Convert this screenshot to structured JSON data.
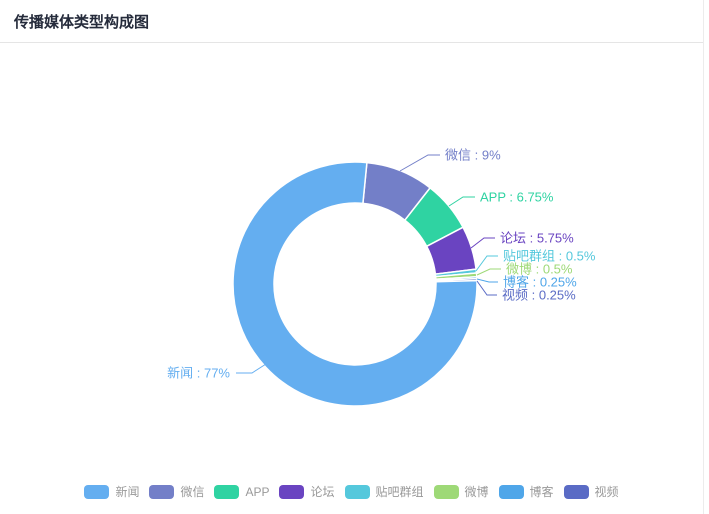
{
  "header": {
    "title": "传播媒体类型构成图"
  },
  "style": {
    "title_color": "#252B3B",
    "legend_text_color": "#999999",
    "panel_border_color": "#ECECEC",
    "background": "#FFFFFF"
  },
  "chart_data": {
    "type": "pie",
    "style": "donut",
    "title": "传播媒体类型构成图",
    "legend_position": "bottom",
    "categories": [
      "新闻",
      "微信",
      "APP",
      "论坛",
      "贴吧群组",
      "微博",
      "博客",
      "视频"
    ],
    "values": [
      77,
      9,
      6.75,
      5.75,
      0.5,
      0.5,
      0.25,
      0.25
    ],
    "unit": "%",
    "items": [
      {
        "name": "新闻",
        "value": 77,
        "percent_label": "新闻 : 77%",
        "color": "#64AEF0"
      },
      {
        "name": "微信",
        "value": 9,
        "percent_label": "微信 : 9%",
        "color": "#737FC8"
      },
      {
        "name": "APP",
        "value": 6.75,
        "percent_label": "APP : 6.75%",
        "color": "#2FD3A2"
      },
      {
        "name": "论坛",
        "value": 5.75,
        "percent_label": "论坛 : 5.75%",
        "color": "#6A44C1"
      },
      {
        "name": "贴吧群组",
        "value": 0.5,
        "percent_label": "贴吧群组 : 0.5%",
        "color": "#55C8DC"
      },
      {
        "name": "微博",
        "value": 0.5,
        "percent_label": "微博 : 0.5%",
        "color": "#9ED977"
      },
      {
        "name": "博客",
        "value": 0.25,
        "percent_label": "博客 : 0.25%",
        "color": "#4FA6E9"
      },
      {
        "name": "视频",
        "value": 0.25,
        "percent_label": "视频 : 0.25%",
        "color": "#5A6BC5"
      }
    ]
  }
}
